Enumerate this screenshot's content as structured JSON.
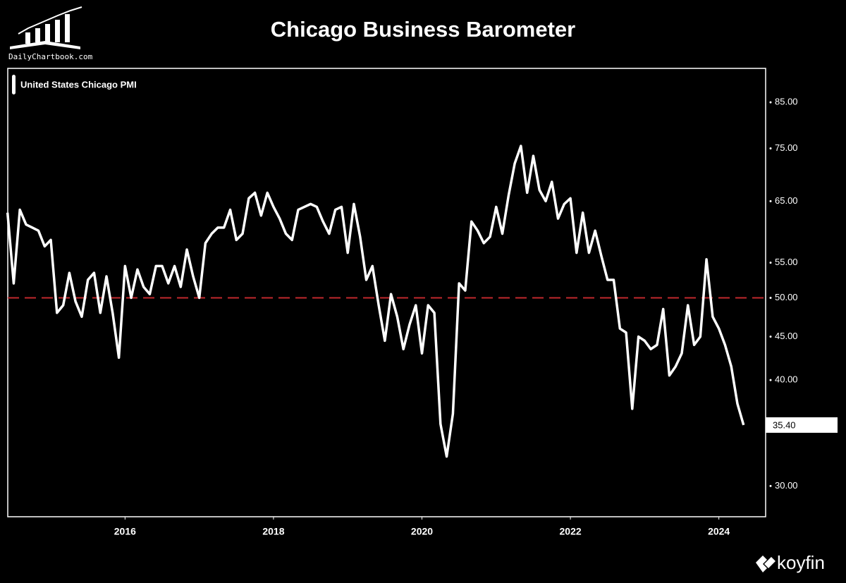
{
  "chart_data": {
    "type": "line",
    "title": "Chicago Business Barometer",
    "branding": {
      "top_left": "DailyChartbook.com",
      "bottom_right": "koyfin"
    },
    "log_scale": true,
    "xlim": [
      2014.42,
      2024.63
    ],
    "xticks": [
      2016,
      2018,
      2020,
      2022,
      2024
    ],
    "ylim": [
      27.6,
      93.2
    ],
    "yticks": [
      {
        "value": 30,
        "label": "30.00"
      },
      {
        "value": 40,
        "label": "40.00"
      },
      {
        "value": 45,
        "label": "45.00"
      },
      {
        "value": 50,
        "label": "50.00"
      },
      {
        "value": 55,
        "label": "55.00"
      },
      {
        "value": 65,
        "label": "65.00"
      },
      {
        "value": 75,
        "label": "75.00"
      },
      {
        "value": 85,
        "label": "85.00"
      }
    ],
    "reference_line": {
      "value": 50,
      "color": "#c0282d"
    },
    "x": [
      2014.417,
      2014.5,
      2014.583,
      2014.667,
      2014.75,
      2014.833,
      2014.917,
      2015,
      2015.083,
      2015.167,
      2015.25,
      2015.333,
      2015.417,
      2015.5,
      2015.583,
      2015.667,
      2015.75,
      2015.833,
      2015.917,
      2016,
      2016.083,
      2016.167,
      2016.25,
      2016.333,
      2016.417,
      2016.5,
      2016.583,
      2016.667,
      2016.75,
      2016.833,
      2016.917,
      2017,
      2017.083,
      2017.167,
      2017.25,
      2017.333,
      2017.417,
      2017.5,
      2017.583,
      2017.667,
      2017.75,
      2017.833,
      2017.917,
      2018,
      2018.083,
      2018.167,
      2018.25,
      2018.333,
      2018.417,
      2018.5,
      2018.583,
      2018.667,
      2018.75,
      2018.833,
      2018.917,
      2019,
      2019.083,
      2019.167,
      2019.25,
      2019.333,
      2019.417,
      2019.5,
      2019.583,
      2019.667,
      2019.75,
      2019.833,
      2019.917,
      2020,
      2020.083,
      2020.167,
      2020.25,
      2020.333,
      2020.417,
      2020.5,
      2020.583,
      2020.667,
      2020.75,
      2020.833,
      2020.917,
      2021,
      2021.083,
      2021.167,
      2021.25,
      2021.333,
      2021.417,
      2021.5,
      2021.583,
      2021.667,
      2021.75,
      2021.833,
      2021.917,
      2022,
      2022.083,
      2022.167,
      2022.25,
      2022.333,
      2022.417,
      2022.5,
      2022.583,
      2022.667,
      2022.75,
      2022.833,
      2022.917,
      2023,
      2023.083,
      2023.167,
      2023.25,
      2023.333,
      2023.417,
      2023.5,
      2023.583,
      2023.667,
      2023.75,
      2023.833,
      2023.917,
      2024,
      2024.083,
      2024.167,
      2024.25,
      2024.333
    ],
    "series": [
      {
        "name": "United States Chicago PMI",
        "color": "#ffffff",
        "last_label": "35.40",
        "values": [
          63,
          52,
          63.5,
          61,
          60.5,
          60,
          57.5,
          58.5,
          48,
          49,
          53.5,
          49.5,
          47.5,
          52.5,
          53.5,
          48,
          53,
          48,
          42.5,
          54.5,
          50,
          54,
          51.5,
          50.5,
          54.5,
          54.5,
          52,
          54.5,
          51.5,
          57,
          53,
          50,
          58,
          59.5,
          60.5,
          60.5,
          63.5,
          58.5,
          59.5,
          65.5,
          66.5,
          62.5,
          66.5,
          64,
          62,
          59.5,
          58.5,
          63.5,
          64,
          64.5,
          64,
          61.5,
          59.5,
          63.5,
          64,
          56.5,
          64.5,
          59,
          52.5,
          54.5,
          49,
          44.5,
          50.5,
          47.5,
          43.5,
          46.5,
          49,
          43,
          49,
          48,
          35.5,
          32.5,
          36.5,
          52,
          51,
          61.5,
          60,
          58,
          59,
          64,
          59.5,
          66,
          72,
          75.5,
          66.5,
          73.5,
          67,
          65,
          68.5,
          62,
          64.5,
          65.5,
          56.5,
          63,
          56.5,
          60,
          56,
          52.5,
          52.5,
          46,
          45.5,
          37,
          45,
          44.5,
          43.5,
          44,
          48.5,
          40.5,
          41.5,
          43,
          49,
          44,
          45,
          55.5,
          47.5,
          46,
          44,
          41.5,
          37.5,
          35.4
        ]
      }
    ]
  }
}
